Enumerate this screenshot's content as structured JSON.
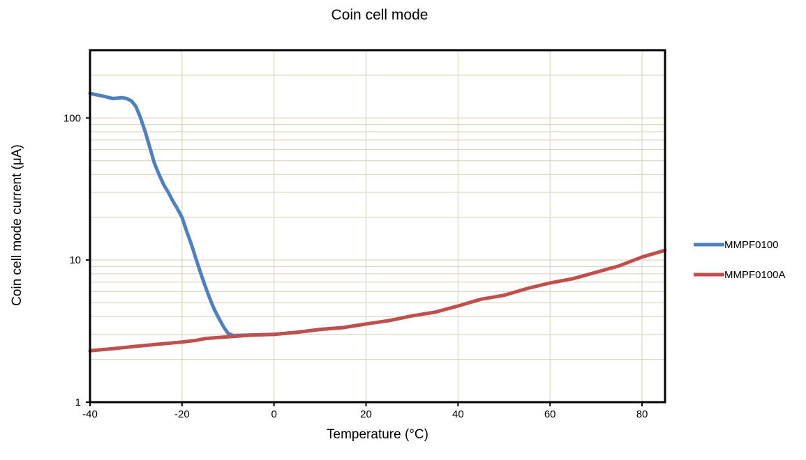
{
  "chart_data": {
    "type": "line",
    "title": "Coin cell mode",
    "xlabel": "Temperature (°C)",
    "ylabel": "Coin cell mode current (μA)",
    "x_scale": "linear",
    "y_scale": "log",
    "xlim": [
      -40,
      85
    ],
    "ylim": [
      1,
      300
    ],
    "x_ticks": [
      -40,
      -20,
      0,
      20,
      40,
      60,
      80
    ],
    "x_tick_labels": [
      "-40",
      "-20",
      "0",
      "20",
      "40",
      "60",
      "80"
    ],
    "y_ticks": [
      1,
      10,
      100
    ],
    "y_tick_labels": [
      "1",
      "10",
      "100"
    ],
    "grid": true,
    "legend_position": "right",
    "series": [
      {
        "name": "MMPF0100",
        "color": "#4f81bd",
        "x": [
          -40,
          -37,
          -35,
          -34,
          -33,
          -32,
          -31,
          -30,
          -29,
          -28,
          -27,
          -26,
          -25,
          -24,
          -23,
          -22,
          -21,
          -20,
          -19,
          -18,
          -17,
          -16,
          -15,
          -14,
          -13,
          -12,
          -11,
          -10,
          -9,
          -8,
          -5,
          0,
          5,
          10,
          15,
          20
        ],
        "y": [
          149,
          142,
          137,
          138,
          139,
          137,
          132,
          120,
          100,
          80,
          62,
          48,
          40,
          34,
          30,
          26,
          23,
          20,
          16,
          13,
          10.3,
          8.2,
          6.6,
          5.4,
          4.5,
          3.9,
          3.4,
          3.05,
          2.95,
          2.95,
          2.97,
          3.0,
          3.1,
          3.25,
          3.35,
          3.55
        ]
      },
      {
        "name": "MMPF0100A",
        "color": "#c0504d",
        "x": [
          -40,
          -35,
          -30,
          -25,
          -20,
          -17,
          -15,
          -10,
          -5,
          0,
          5,
          10,
          15,
          20,
          25,
          30,
          35,
          40,
          45,
          50,
          55,
          60,
          65,
          70,
          75,
          80,
          85
        ],
        "y": [
          2.3,
          2.38,
          2.47,
          2.56,
          2.65,
          2.72,
          2.8,
          2.88,
          2.96,
          3.0,
          3.1,
          3.25,
          3.35,
          3.55,
          3.75,
          4.05,
          4.3,
          4.75,
          5.3,
          5.65,
          6.3,
          6.9,
          7.4,
          8.2,
          9.1,
          10.5,
          11.7
        ]
      }
    ]
  }
}
